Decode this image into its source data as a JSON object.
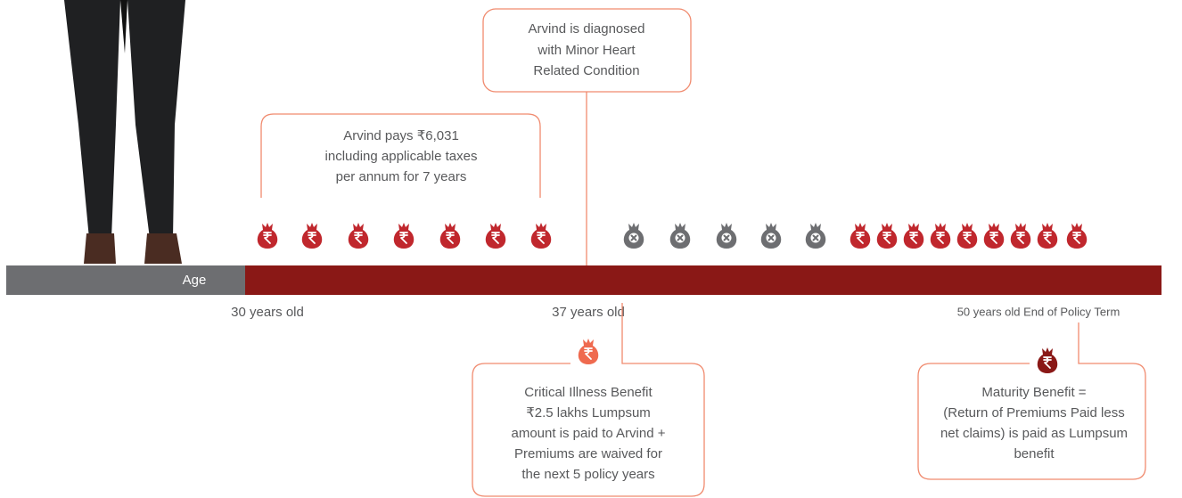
{
  "diagnosis_box": {
    "lines": [
      "Arvind is diagnosed",
      "with Minor Heart",
      "Related Condition"
    ]
  },
  "premium_note": {
    "lines": [
      "Arvind pays ₹6,031",
      "including applicable taxes",
      "per annum for 7 years"
    ]
  },
  "timeline": {
    "label": "Age",
    "milestones": [
      "30 years old",
      "37 years old",
      "50 years old End of Policy Term"
    ]
  },
  "critical_illness_box": {
    "lines": [
      "Critical Illness Benefit",
      "₹2.5 lakhs Lumpsum",
      "amount is paid to Arvind +",
      "Premiums are waived for",
      "the next 5 policy years"
    ]
  },
  "maturity_box": {
    "lines": [
      "Maturity Benefit =",
      "(Return of Premiums Paid less",
      "net claims) is paid as Lumpsum",
      "benefit"
    ]
  }
}
